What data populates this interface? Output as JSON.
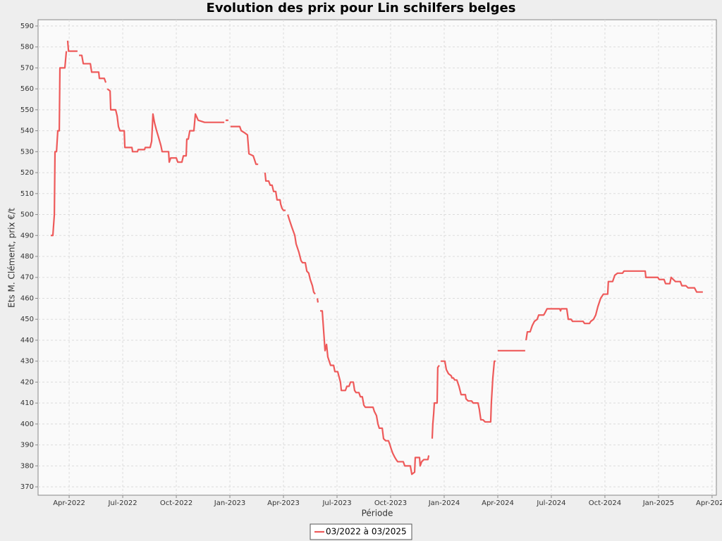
{
  "chart_data": {
    "type": "line",
    "title": "Evolution des prix pour Lin schilfers belges",
    "x_label": "Période",
    "y_label": "Ets M. Clément, prix €/t",
    "grid": true,
    "legend": "bottom",
    "xlim": [
      2022.105,
      2025.27
    ],
    "ylim": [
      366,
      593
    ],
    "xticks": [
      {
        "value": 2022.25,
        "label": "Apr-2022"
      },
      {
        "value": 2022.5,
        "label": "Jul-2022"
      },
      {
        "value": 2022.75,
        "label": "Oct-2022"
      },
      {
        "value": 2023.0,
        "label": "Jan-2023"
      },
      {
        "value": 2023.25,
        "label": "Apr-2023"
      },
      {
        "value": 2023.5,
        "label": "Jul-2023"
      },
      {
        "value": 2023.75,
        "label": "Oct-2023"
      },
      {
        "value": 2024.0,
        "label": "Jan-2024"
      },
      {
        "value": 2024.25,
        "label": "Apr-2024"
      },
      {
        "value": 2024.5,
        "label": "Jul-2024"
      },
      {
        "value": 2024.75,
        "label": "Oct-2024"
      },
      {
        "value": 2025.0,
        "label": "Jan-2025"
      },
      {
        "value": 2025.25,
        "label": "Apr-2025"
      }
    ],
    "yticks": [
      370,
      380,
      390,
      400,
      410,
      420,
      430,
      440,
      450,
      460,
      470,
      480,
      490,
      500,
      510,
      520,
      530,
      540,
      550,
      560,
      570,
      580,
      590
    ],
    "series": [
      {
        "name": "03/2022 à 03/2025",
        "color": "#ee5a5a",
        "x": [
          2022.164,
          2022.174,
          2022.181,
          2022.184,
          2022.191,
          2022.197,
          2022.204,
          2022.207,
          2022.23,
          2022.237,
          null,
          2022.243,
          2022.247,
          2022.289,
          null,
          2022.296,
          2022.309,
          2022.316,
          2022.349,
          2022.355,
          2022.388,
          2022.391,
          2022.414,
          2022.421,
          null,
          2022.428,
          2022.441,
          2022.444,
          2022.467,
          2022.474,
          2022.48,
          2022.487,
          2022.507,
          2022.51,
          2022.543,
          2022.546,
          2022.569,
          2022.572,
          2022.602,
          2022.605,
          2022.628,
          2022.635,
          2022.641,
          2022.648,
          2022.658,
          2022.664,
          2022.678,
          2022.684,
          2022.714,
          2022.717,
          2022.724,
          2022.75,
          2022.757,
          2022.776,
          2022.783,
          2022.796,
          2022.799,
          2022.806,
          2022.813,
          2022.832,
          2022.839,
          2022.852,
          2022.882,
          2022.974,
          null,
          2022.98,
          2022.993,
          null,
          2023.003,
          2023.046,
          2023.053,
          2023.069,
          2023.082,
          2023.089,
          2023.109,
          2023.122,
          2023.132,
          null,
          2023.138,
          null,
          2023.164,
          2023.168,
          2023.181,
          2023.188,
          2023.197,
          2023.204,
          2023.214,
          2023.22,
          2023.234,
          2023.237,
          2023.243,
          2023.25,
          2023.26,
          null,
          2023.27,
          2023.276,
          2023.289,
          2023.303,
          2023.309,
          2023.322,
          2023.332,
          2023.339,
          2023.352,
          2023.359,
          2023.368,
          2023.375,
          2023.385,
          2023.391,
          2023.398,
          null,
          2023.408,
          2023.411,
          null,
          2023.421,
          2023.431,
          2023.444,
          2023.451,
          2023.457,
          2023.47,
          2023.484,
          2023.49,
          2023.503,
          2023.516,
          2023.52,
          2023.539,
          2023.546,
          2023.556,
          2023.563,
          2023.576,
          2023.582,
          2023.589,
          2023.602,
          2023.609,
          2023.618,
          2023.625,
          2023.632,
          2023.668,
          2023.674,
          2023.684,
          2023.691,
          2023.697,
          2023.711,
          2023.717,
          2023.727,
          2023.74,
          2023.747,
          2023.753,
          2023.76,
          2023.77,
          2023.776,
          2023.783,
          2023.809,
          2023.816,
          2023.842,
          2023.849,
          2023.862,
          2023.865,
          2023.885,
          2023.888,
          2023.895,
          2023.905,
          2023.924,
          2023.928,
          null,
          2023.944,
          2023.947,
          2023.951,
          2023.954,
          2023.967,
          2023.97,
          2023.977,
          null,
          2023.984,
          2024.003,
          2024.01,
          2024.02,
          2024.033,
          2024.036,
          2024.043,
          2024.049,
          2024.059,
          2024.069,
          2024.079,
          2024.099,
          2024.102,
          2024.112,
          2024.128,
          2024.135,
          2024.158,
          2024.164,
          2024.171,
          2024.181,
          2024.191,
          2024.217,
          2024.22,
          2024.227,
          2024.234,
          2024.24,
          null,
          2024.25,
          2024.378,
          null,
          2024.382,
          2024.388,
          2024.401,
          2024.411,
          2024.421,
          2024.434,
          2024.441,
          2024.464,
          2024.47,
          2024.48,
          2024.539,
          2024.543,
          2024.546,
          2024.572,
          2024.579,
          2024.592,
          2024.599,
          2024.648,
          2024.655,
          2024.678,
          2024.684,
          2024.697,
          2024.707,
          2024.717,
          2024.73,
          2024.743,
          2024.763,
          2024.766,
          2024.786,
          2024.796,
          2024.809,
          2024.832,
          2024.839,
          2024.938,
          2024.941,
          2024.997,
          2025.003,
          2025.026,
          2025.033,
          2025.053,
          2025.059,
          2025.079,
          2025.102,
          2025.109,
          2025.128,
          2025.138,
          2025.168,
          2025.178,
          2025.207
        ],
        "values": [
          490,
          490,
          500,
          530,
          530,
          540,
          540,
          570,
          570,
          578,
          null,
          583,
          578,
          578,
          null,
          576,
          576,
          572,
          572,
          568,
          568,
          565,
          565,
          563,
          null,
          560,
          559,
          550,
          550,
          547,
          542,
          540,
          540,
          532,
          532,
          530,
          530,
          531,
          531,
          532,
          532,
          535,
          548,
          544,
          540,
          538,
          533,
          530,
          530,
          525,
          527,
          527,
          525,
          525,
          528,
          528,
          536,
          536,
          540,
          540,
          548,
          545,
          544,
          544,
          null,
          545,
          545,
          null,
          542,
          542,
          540,
          539,
          538,
          529,
          528,
          524,
          524,
          null,
          523,
          null,
          520,
          516,
          516,
          514,
          514,
          511,
          511,
          507,
          507,
          505,
          503,
          502,
          502,
          null,
          500,
          498,
          494,
          490,
          486,
          482,
          478,
          477,
          477,
          473,
          472,
          469,
          466,
          463,
          462,
          null,
          460,
          458,
          null,
          454,
          454,
          435,
          438,
          432,
          428,
          428,
          425,
          425,
          420,
          416,
          416,
          418,
          418,
          420,
          420,
          416,
          415,
          415,
          413,
          413,
          409,
          408,
          408,
          406,
          404,
          400,
          398,
          398,
          393,
          392,
          392,
          390,
          388,
          386,
          384,
          383,
          382,
          382,
          380,
          380,
          376,
          377,
          384,
          384,
          380,
          382,
          383,
          383,
          385,
          null,
          393,
          400,
          405,
          410,
          410,
          427,
          428,
          null,
          430,
          430,
          426,
          424,
          423,
          422,
          422,
          421,
          421,
          418,
          414,
          414,
          412,
          411,
          411,
          410,
          410,
          407,
          402,
          402,
          401,
          401,
          410,
          422,
          430,
          430,
          null,
          435,
          435,
          null,
          440,
          444,
          444,
          447,
          449,
          450,
          452,
          452,
          453,
          455,
          455,
          454,
          455,
          455,
          450,
          450,
          449,
          449,
          448,
          448,
          449,
          450,
          452,
          456,
          460,
          462,
          462,
          468,
          468,
          471,
          472,
          472,
          473,
          473,
          470,
          470,
          469,
          469,
          467,
          467,
          470,
          468,
          468,
          466,
          466,
          465,
          465,
          463,
          463
        ]
      }
    ]
  }
}
